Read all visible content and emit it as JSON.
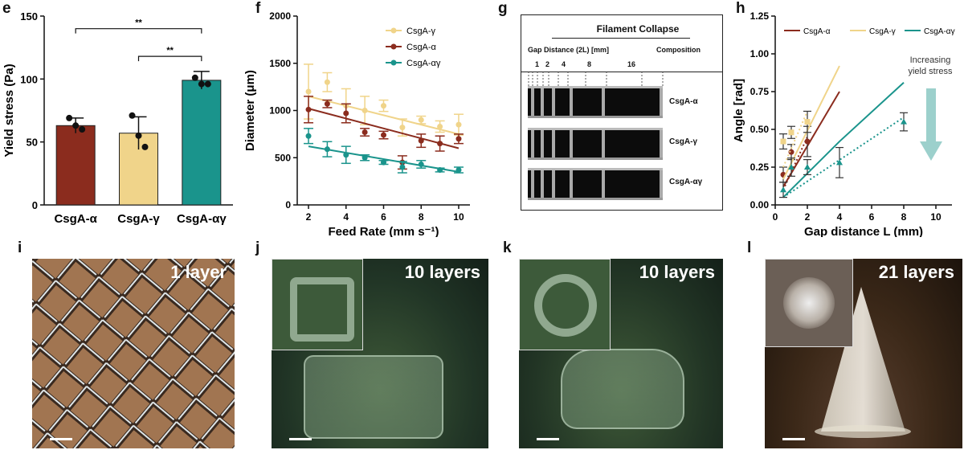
{
  "panel_labels": {
    "e": "e",
    "f": "f",
    "g": "g",
    "h": "h",
    "i": "i",
    "j": "j",
    "k": "k",
    "l": "l"
  },
  "colors": {
    "alpha": "#8b2c1e",
    "gamma": "#f0d48a",
    "alphagamma": "#1a948c"
  },
  "chart_data": [
    {
      "panel": "e",
      "type": "bar",
      "categories": [
        "CsgA-α",
        "CsgA-γ",
        "CsgA-αγ"
      ],
      "values": [
        63,
        57,
        99
      ],
      "errors": [
        6,
        13,
        7
      ],
      "points": [
        [
          69,
          63,
          60
        ],
        [
          71,
          55,
          46
        ],
        [
          101,
          96,
          96
        ]
      ],
      "ylabel": "Yield stress (Pa)",
      "ylim": [
        0,
        150
      ],
      "yticks": [
        "0",
        "50",
        "100",
        "150"
      ],
      "significance": [
        {
          "from": 0,
          "to": 2,
          "text": "**"
        },
        {
          "from": 1,
          "to": 2,
          "text": "**"
        }
      ]
    },
    {
      "panel": "f",
      "type": "scatter",
      "xlabel": "Feed Rate (mm s⁻¹)",
      "ylabel": "Diameter (μm)",
      "xlim": [
        1.4,
        10.6
      ],
      "ylim": [
        0,
        2000
      ],
      "xticks": [
        "2",
        "4",
        "6",
        "8",
        "10"
      ],
      "yticks": [
        "0",
        "500",
        "1000",
        "1500",
        "2000"
      ],
      "series": [
        {
          "name": "CsgA-γ",
          "x": [
            2,
            3,
            4,
            5,
            6,
            7,
            8,
            9,
            10
          ],
          "y": [
            1200,
            1300,
            1050,
            1000,
            1050,
            820,
            900,
            830,
            850
          ],
          "err": [
            290,
            100,
            180,
            150,
            60,
            90,
            40,
            60,
            110
          ],
          "fit": [
            [
              2,
              1150
            ],
            [
              10,
              750
            ]
          ]
        },
        {
          "name": "CsgA-α",
          "x": [
            2,
            3,
            4,
            5,
            6,
            7,
            8,
            9,
            10
          ],
          "y": [
            1010,
            1070,
            970,
            770,
            740,
            450,
            680,
            650,
            700
          ],
          "err": [
            140,
            40,
            100,
            40,
            40,
            70,
            70,
            80,
            50
          ],
          "fit": [
            [
              2,
              1020
            ],
            [
              10,
              600
            ]
          ]
        },
        {
          "name": "CsgA-αγ",
          "x": [
            2,
            3,
            4,
            5,
            6,
            7,
            8,
            9,
            10
          ],
          "y": [
            730,
            590,
            530,
            500,
            450,
            400,
            430,
            370,
            370
          ],
          "err": [
            80,
            80,
            90,
            30,
            20,
            60,
            40,
            20,
            30
          ],
          "fit": [
            [
              2,
              620
            ],
            [
              10,
              350
            ]
          ]
        }
      ]
    },
    {
      "panel": "h",
      "type": "line",
      "xlabel": "Gap distance L (mm)",
      "ylabel": "Angle [rad]",
      "xlim": [
        0,
        11
      ],
      "ylim": [
        0,
        1.25
      ],
      "xticks": [
        "0",
        "2",
        "4",
        "6",
        "8",
        "10"
      ],
      "yticks": [
        "0.00",
        "0.25",
        "0.50",
        "0.75",
        "1.00",
        "1.25"
      ],
      "series": [
        {
          "name": "CsgA-α",
          "points": [
            [
              0.5,
              0.2
            ],
            [
              1,
              0.35
            ],
            [
              2,
              0.42
            ]
          ],
          "err": [
            0.05,
            0.05,
            0.1
          ],
          "model": [
            [
              0.5,
              0.12
            ],
            [
              4,
              0.75
            ]
          ],
          "fit": [
            [
              0.5,
              0.1
            ],
            [
              2,
              0.45
            ]
          ]
        },
        {
          "name": "CsgA-γ",
          "points": [
            [
              0.5,
              0.42
            ],
            [
              1,
              0.48
            ],
            [
              2,
              0.55
            ]
          ],
          "err": [
            0.05,
            0.04,
            0.07
          ],
          "model": [
            [
              0.5,
              0.17
            ],
            [
              4,
              0.92
            ]
          ],
          "fit": [
            [
              0.5,
              0.25
            ],
            [
              2,
              0.62
            ]
          ]
        },
        {
          "name": "CsgA-αγ",
          "points": [
            [
              0.5,
              0.1
            ],
            [
              1,
              0.25
            ],
            [
              2,
              0.25
            ],
            [
              4,
              0.28
            ],
            [
              8,
              0.55
            ]
          ],
          "err": [
            0.05,
            0.06,
            0.05,
            0.1,
            0.06
          ],
          "model": [
            [
              0.5,
              0.05
            ],
            [
              4,
              0.42
            ],
            [
              8,
              0.81
            ]
          ],
          "fit": [
            [
              0.5,
              0.05
            ],
            [
              8,
              0.58
            ]
          ]
        }
      ],
      "annotation": "Increasing\nyield stress"
    }
  ],
  "panel_g": {
    "title": "Filament Collapse",
    "gap_header": "Gap Distance (2L) [mm]",
    "composition_header": "Composition",
    "gaps": [
      "1",
      "2",
      "4",
      "8",
      "16"
    ],
    "rows": [
      "CsgA-α",
      "CsgA-γ",
      "CsgA-αγ"
    ]
  },
  "photos": {
    "i": "1 layer",
    "j": "10 layers",
    "k": "10 layers",
    "l": "21 layers"
  }
}
